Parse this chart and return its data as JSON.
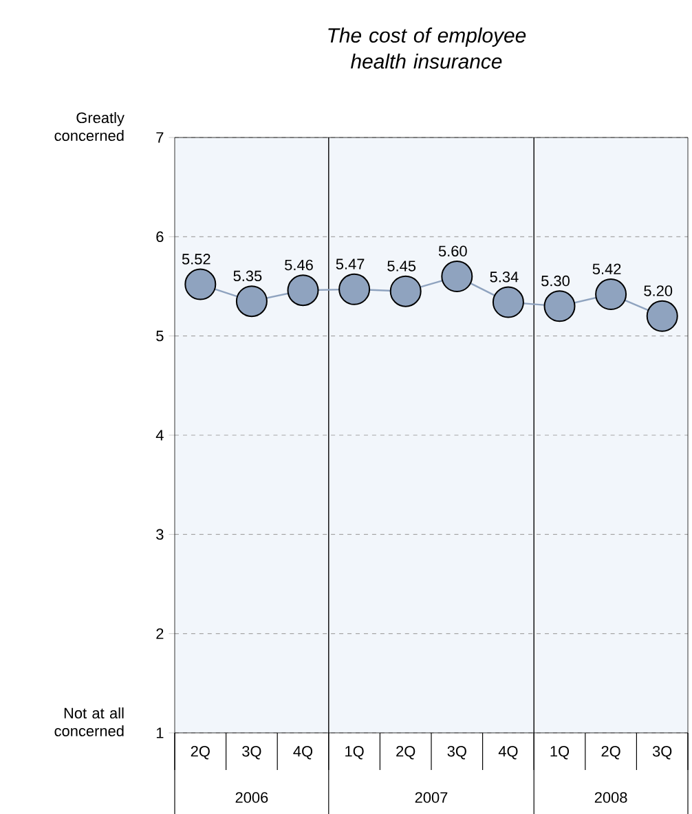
{
  "chart_data": {
    "type": "line",
    "title": "The cost of employee health insurance",
    "categories": [
      "2Q",
      "3Q",
      "4Q",
      "1Q",
      "2Q",
      "3Q",
      "4Q",
      "1Q",
      "2Q",
      "3Q"
    ],
    "series": [
      {
        "color": "#8fa3bf",
        "values": [
          5.52,
          5.35,
          5.46,
          5.47,
          5.45,
          5.6,
          5.34,
          5.3,
          5.42,
          5.2
        ],
        "value_labels": [
          "5.52",
          "5.35",
          "5.46",
          "5.47",
          "5.45",
          "5.60",
          "5.34",
          "5.30",
          "5.42",
          "5.20"
        ]
      }
    ],
    "ylim": [
      1,
      7
    ],
    "yticks": [
      1,
      2,
      3,
      4,
      5,
      6,
      7
    ],
    "annotations": [
      "Greatly concerned",
      "Not at all concerned",
      "2006",
      "2007",
      "2008"
    ],
    "grid": "y",
    "marker": "circle",
    "line_style": "solid"
  }
}
